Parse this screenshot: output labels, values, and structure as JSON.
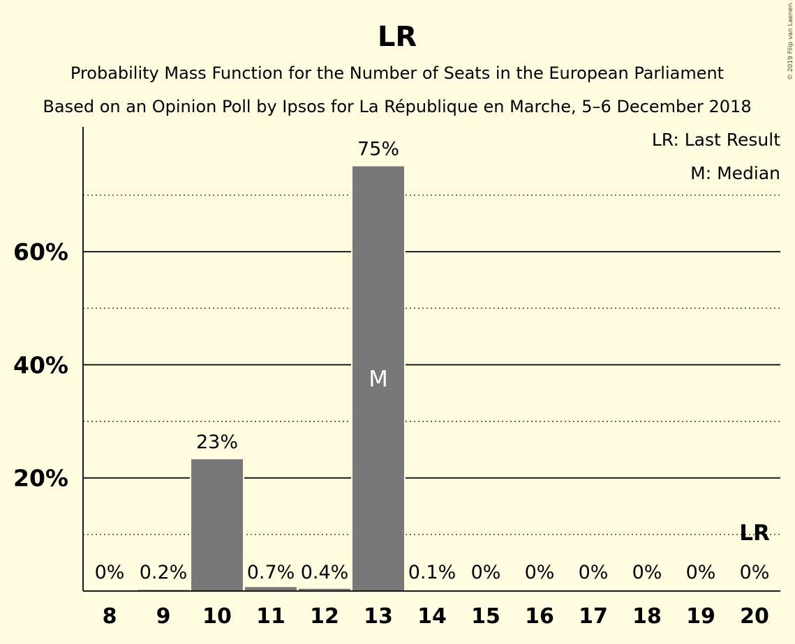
{
  "title": "LR",
  "subtitle1": "Probability Mass Function for the Number of Seats in the European Parliament",
  "subtitle2": "Based on an Opinion Poll by Ipsos for La République en Marche, 5–6 December 2018",
  "copyright": "© 2019 Filip van Laenen",
  "legend": {
    "last_result": "LR: Last Result",
    "median": "M: Median"
  },
  "colors": {
    "bar": "#787878",
    "background": "#fffce0",
    "text": "#1a1a1a"
  },
  "chart_data": {
    "type": "bar",
    "categories": [
      "8",
      "9",
      "10",
      "11",
      "12",
      "13",
      "14",
      "15",
      "16",
      "17",
      "18",
      "19",
      "20"
    ],
    "values": [
      0,
      0.2,
      23.3,
      0.7,
      0.4,
      75.1,
      0.1,
      0,
      0,
      0,
      0,
      0,
      0
    ],
    "value_labels": [
      "0%",
      "0.2%",
      "23%",
      "0.7%",
      "0.4%",
      "75%",
      "0.1%",
      "0%",
      "0%",
      "0%",
      "0%",
      "0%",
      "0%"
    ],
    "yticks": [
      20,
      40,
      60
    ],
    "ytick_labels": [
      "20%",
      "40%",
      "60%"
    ],
    "minor_gridlines": [
      10,
      30,
      50,
      70
    ],
    "ylim": [
      0,
      80
    ],
    "median_category": "13",
    "median_marker": "M",
    "last_result_category": "20",
    "last_result_marker": "LR",
    "grid": true,
    "legend_position": "top-right"
  }
}
